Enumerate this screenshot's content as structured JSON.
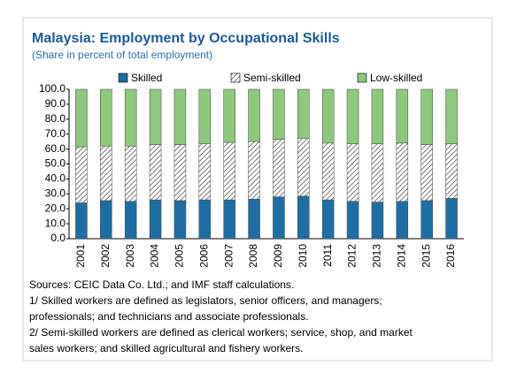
{
  "chart_data": {
    "type": "stacked_bar",
    "title": "Malaysia: Employment by Occupational Skills",
    "subtitle": "(Share in percent of total employment)",
    "categories": [
      "2001",
      "2002",
      "2003",
      "2004",
      "2005",
      "2006",
      "2007",
      "2008",
      "2009",
      "2010",
      "2011",
      "2012",
      "2013",
      "2014",
      "2015",
      "2016"
    ],
    "series": [
      {
        "name": "Skilled",
        "color": "#1b6fa6",
        "values": [
          24,
          25.5,
          25,
          26,
          25.5,
          26,
          26,
          26.5,
          28,
          28.5,
          26,
          25,
          24.5,
          25,
          25.5,
          27
        ]
      },
      {
        "name": "Semi-skilled",
        "color": "hatch",
        "values": [
          37.5,
          36.5,
          37,
          37,
          37.5,
          37.5,
          38.5,
          38.5,
          38.5,
          38.5,
          38,
          38.5,
          39,
          39,
          37.5,
          36.5
        ]
      },
      {
        "name": "Low-skilled",
        "color": "#8cc97b",
        "values": [
          38.5,
          38,
          38,
          37,
          37,
          36.5,
          35.5,
          35,
          33.5,
          33,
          36,
          36.5,
          36.5,
          36,
          37,
          36.5
        ]
      }
    ],
    "ylim": [
      0,
      100
    ],
    "yticks": [
      {
        "value": 0,
        "label": "0.0"
      },
      {
        "value": 10,
        "label": "10.0"
      },
      {
        "value": 20,
        "label": "20.0"
      },
      {
        "value": 30,
        "label": "30.0"
      },
      {
        "value": 40,
        "label": "40.0"
      },
      {
        "value": 50,
        "label": "50.0"
      },
      {
        "value": 60,
        "label": "60.0"
      },
      {
        "value": 70,
        "label": "70.0"
      },
      {
        "value": 80,
        "label": "80.0"
      },
      {
        "value": 90,
        "label": "90.0"
      },
      {
        "value": 100,
        "label": "100.0"
      }
    ],
    "notes": [
      "Sources: CEIC Data Co. Ltd.; and IMF staff calculations.",
      "1/ Skilled workers are defined as legislators, senior officers, and managers;",
      "professionals; and technicians and associate professionals.",
      "2/ Semi-skilled workers are defined as clerical workers; service, shop, and market",
      "sales workers; and skilled agricultural and fishery workers."
    ]
  }
}
